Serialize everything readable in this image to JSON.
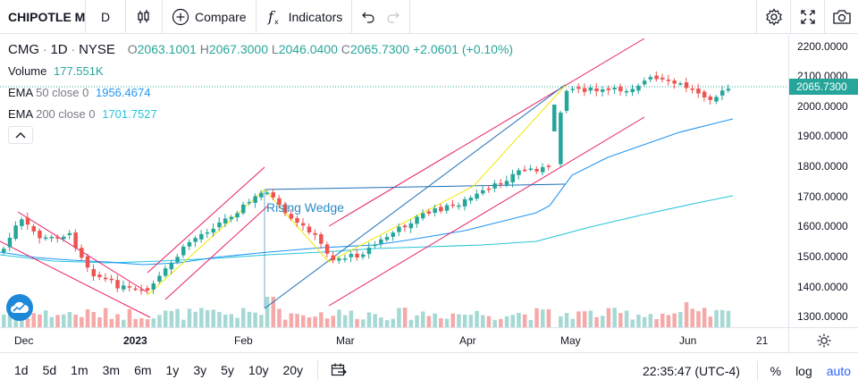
{
  "toolbar": {
    "symbol": "CHIPOTLE M",
    "interval": "D",
    "compare_label": "Compare",
    "indicators_label": "Indicators"
  },
  "legend": {
    "ticker": "CMG",
    "interval": "1D",
    "exchange": "NYSE",
    "open_key": "O",
    "open": "2063.1001",
    "high_key": "H",
    "high": "2067.3000",
    "low_key": "L",
    "low": "2046.0400",
    "close_key": "C",
    "close": "2065.7300",
    "change": "+2.0601 (+0.10%)",
    "volume_label": "Volume",
    "volume": "177.551K",
    "ema50_label": "EMA",
    "ema50_params": "50 close 0",
    "ema50_value": "1956.4674",
    "ema200_label": "EMA",
    "ema200_params": "200 close 0",
    "ema200_value": "1701.7527"
  },
  "drawing": {
    "pattern_label": "Rising Wedge"
  },
  "price_axis": {
    "ticks": [
      "2200.0000",
      "2100.0000",
      "2000.0000",
      "1900.0000",
      "1800.0000",
      "1700.0000",
      "1600.0000",
      "1500.0000",
      "1400.0000",
      "1300.0000"
    ],
    "current_price": "2065.7300"
  },
  "time_axis": {
    "labels": [
      "Dec",
      "2023",
      "Feb",
      "Mar",
      "Apr",
      "May",
      "Jun",
      "21"
    ]
  },
  "bottom_bar": {
    "ranges": [
      "1d",
      "5d",
      "1m",
      "3m",
      "6m",
      "1y",
      "3y",
      "5y",
      "10y",
      "20y"
    ],
    "clock": "22:35:47 (UTC-4)",
    "percent_label": "%",
    "log_label": "log",
    "auto_label": "auto"
  },
  "colors": {
    "up": "#26a69a",
    "down": "#ef5350",
    "ema50": "#2196f3",
    "ema200": "#26c6da",
    "channel": "#e91e63",
    "wedge": "#1e6fb8",
    "zigzag": "#f2e600"
  },
  "chart_data": {
    "type": "candlestick",
    "x_labels": [
      "Dec",
      "2023",
      "Feb",
      "Mar",
      "Apr",
      "May",
      "Jun",
      "21"
    ],
    "ylim": [
      1280,
      2230
    ],
    "last_close": 2065.73,
    "series": [
      {
        "name": "EMA 50 close 0",
        "last": 1956.4674
      },
      {
        "name": "EMA 200 close 0",
        "last": 1701.7527
      }
    ]
  }
}
